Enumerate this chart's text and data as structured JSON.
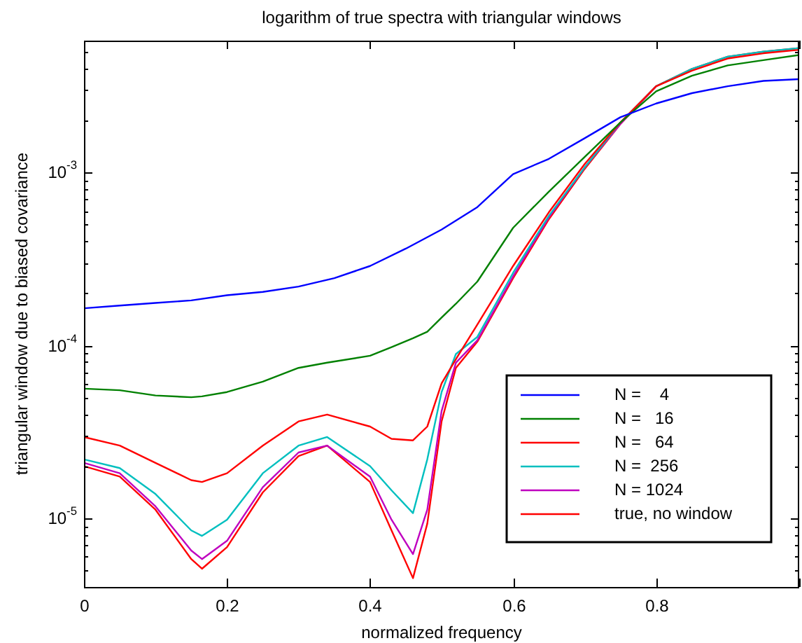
{
  "chart_data": {
    "type": "line",
    "title": "logarithm of true spectra with triangular windows",
    "xlabel": "normalized frequency",
    "ylabel": "triangular window due to biased covariance",
    "log": "y",
    "grid": false,
    "legend": "bottom right",
    "marker": "none",
    "line_style": "solid",
    "xlim": [
      0,
      1
    ],
    "xticks": [
      0,
      0.2,
      0.4,
      0.6,
      0.8,
      {
        "value": 1,
        "label": null
      }
    ],
    "ylim": [
      4e-06,
      0.0058
    ],
    "yticks": [
      {
        "value": 4e-06,
        "label": null
      },
      {
        "value": 5e-06,
        "label": null
      },
      {
        "value": 6e-06,
        "label": null
      },
      {
        "value": 7e-06,
        "label": null
      },
      {
        "value": 8e-06,
        "label": null
      },
      {
        "value": 9e-06,
        "label": null
      },
      {
        "value": 1e-05,
        "label": "10$^{-5}$"
      },
      {
        "value": 2e-05,
        "label": null
      },
      {
        "value": 3e-05,
        "label": null
      },
      {
        "value": 4e-05,
        "label": null
      },
      {
        "value": 5e-05,
        "label": null
      },
      {
        "value": 6e-05,
        "label": null
      },
      {
        "value": 7e-05,
        "label": null
      },
      {
        "value": 8e-05,
        "label": null
      },
      {
        "value": 9e-05,
        "label": null
      },
      {
        "value": 0.0001,
        "label": "10$^{-4}$"
      },
      {
        "value": 0.0002,
        "label": null
      },
      {
        "value": 0.0003,
        "label": null
      },
      {
        "value": 0.0004,
        "label": null
      },
      {
        "value": 0.0005,
        "label": null
      },
      {
        "value": 0.0006,
        "label": null
      },
      {
        "value": 0.0007,
        "label": null
      },
      {
        "value": 0.0008,
        "label": null
      },
      {
        "value": 0.0009,
        "label": null
      },
      {
        "value": 0.001,
        "label": "10$^{-3}$"
      },
      {
        "value": 0.002,
        "label": null
      },
      {
        "value": 0.003,
        "label": null
      },
      {
        "value": 0.004,
        "label": null
      },
      {
        "value": 0.005,
        "label": null
      }
    ],
    "series": [
      {
        "name": "N =    4",
        "color": "#0000ff",
        "x": [
          0,
          0.05,
          0.1,
          0.15,
          0.2,
          0.25,
          0.3,
          0.35,
          0.4,
          0.45,
          0.5,
          0.55,
          0.6,
          0.65,
          0.7,
          0.75,
          0.8,
          0.85,
          0.9,
          0.95,
          1.0
        ],
        "values": [
          0.000164,
          0.00017,
          0.000176,
          0.000182,
          0.000195,
          0.000204,
          0.000219,
          0.000245,
          0.000288,
          0.000363,
          0.000468,
          0.000631,
          0.00098,
          0.0012,
          0.00158,
          0.00209,
          0.00251,
          0.00288,
          0.00316,
          0.00339,
          0.00347
        ]
      },
      {
        "name": "N =   16",
        "color": "#008000",
        "x": [
          0,
          0.05,
          0.1,
          0.15,
          0.165,
          0.2,
          0.25,
          0.3,
          0.34,
          0.4,
          0.43,
          0.46,
          0.48,
          0.5,
          0.52,
          0.55,
          0.6,
          0.65,
          0.7,
          0.75,
          0.8,
          0.85,
          0.9,
          0.95,
          1.0
        ],
        "values": [
          5.62e-05,
          5.5e-05,
          5.13e-05,
          5.01e-05,
          5.07e-05,
          5.37e-05,
          6.17e-05,
          7.41e-05,
          7.94e-05,
          8.71e-05,
          9.77e-05,
          0.00011,
          0.00012,
          0.000145,
          0.000174,
          0.000234,
          0.000479,
          0.000776,
          0.00123,
          0.00195,
          0.00295,
          0.00363,
          0.00417,
          0.00447,
          0.00479
        ]
      },
      {
        "name": "N =   64",
        "color": "#ff0000",
        "x": [
          0,
          0.05,
          0.1,
          0.15,
          0.165,
          0.2,
          0.25,
          0.3,
          0.34,
          0.4,
          0.43,
          0.46,
          0.48,
          0.5,
          0.52,
          0.55,
          0.6,
          0.65,
          0.7,
          0.75,
          0.8,
          0.85,
          0.9,
          0.95,
          1.0
        ],
        "values": [
          2.95e-05,
          2.63e-05,
          2.09e-05,
          1.66e-05,
          1.62e-05,
          1.82e-05,
          2.63e-05,
          3.63e-05,
          3.98e-05,
          3.39e-05,
          2.88e-05,
          2.82e-05,
          3.39e-05,
          6.03e-05,
          8.32e-05,
          0.000132,
          0.000288,
          0.000589,
          0.00112,
          0.00195,
          0.00316,
          0.00389,
          0.00457,
          0.0049,
          0.00513
        ]
      },
      {
        "name": "N =  256",
        "color": "#00bfbf",
        "x": [
          0,
          0.05,
          0.1,
          0.15,
          0.165,
          0.2,
          0.25,
          0.3,
          0.34,
          0.4,
          0.43,
          0.46,
          0.48,
          0.5,
          0.52,
          0.55,
          0.6,
          0.65,
          0.7,
          0.75,
          0.8,
          0.85,
          0.9,
          0.95,
          1.0
        ],
        "values": [
          2.19e-05,
          1.95e-05,
          1.38e-05,
          8.5e-06,
          7.9e-06,
          9.8e-06,
          1.82e-05,
          2.63e-05,
          2.95e-05,
          2e-05,
          1.45e-05,
          1.07e-05,
          2.19e-05,
          5.37e-05,
          8.91e-05,
          0.000112,
          0.000263,
          0.000562,
          0.00107,
          0.00195,
          0.00316,
          0.00398,
          0.00468,
          0.00501,
          0.00525
        ]
      },
      {
        "name": "N = 1024",
        "color": "#bf00bf",
        "x": [
          0,
          0.05,
          0.1,
          0.15,
          0.165,
          0.2,
          0.25,
          0.3,
          0.34,
          0.4,
          0.43,
          0.46,
          0.48,
          0.5,
          0.52,
          0.55,
          0.6,
          0.65,
          0.7,
          0.75,
          0.8
        ],
        "values": [
          2.09e-05,
          1.82e-05,
          1.17e-05,
          6.5e-06,
          5.8e-06,
          7.4e-06,
          1.51e-05,
          2.4e-05,
          2.63e-05,
          1.74e-05,
          9.8e-06,
          6.2e-06,
          1.12e-05,
          4.17e-05,
          7.94e-05,
          0.000107,
          0.000251,
          0.00055,
          0.00107,
          0.00191,
          0.00316
        ]
      },
      {
        "name": "true, no window",
        "color": "#ff0000",
        "x": [
          0,
          0.05,
          0.1,
          0.15,
          0.165,
          0.2,
          0.25,
          0.3,
          0.34,
          0.4,
          0.43,
          0.46,
          0.48,
          0.5,
          0.52,
          0.55,
          0.6,
          0.65,
          0.7,
          0.75,
          0.8,
          0.85,
          0.9,
          0.95,
          1.0
        ],
        "values": [
          2e-05,
          1.74e-05,
          1.12e-05,
          5.8e-06,
          5.1e-06,
          6.8e-06,
          1.41e-05,
          2.29e-05,
          2.63e-05,
          1.62e-05,
          8.5e-06,
          4.5e-06,
          9.3e-06,
          3.63e-05,
          7.41e-05,
          0.000105,
          0.000245,
          0.000537,
          0.00105,
          0.00191,
          0.00316,
          0.00398,
          0.00468,
          0.00501,
          0.00525
        ]
      }
    ]
  }
}
